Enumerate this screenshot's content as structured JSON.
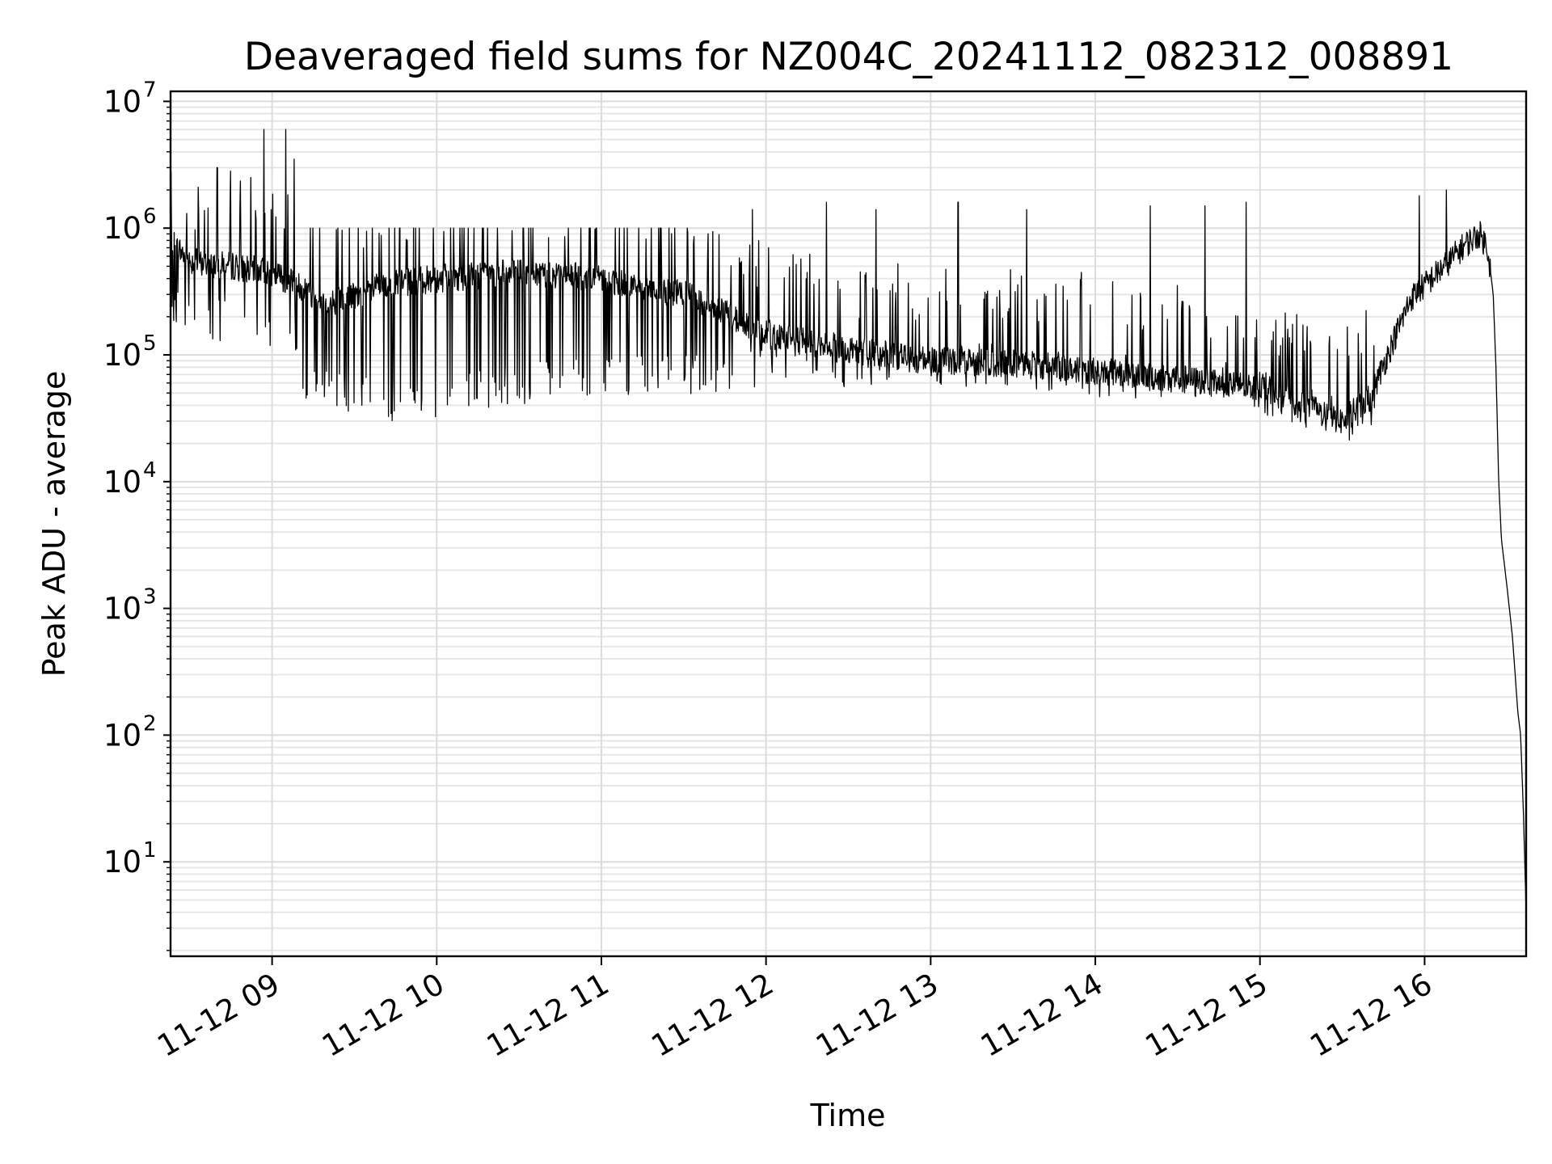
{
  "chart_data": {
    "type": "line",
    "title": "Deaveraged field sums for NZ004C_20241112_082312_008891",
    "xlabel": "Time",
    "ylabel": "Peak ADU - average",
    "yscale": "log",
    "ylim": [
      1.8,
      12000000
    ],
    "xlim": [
      "2024-11-12 08:23",
      "2024-11-12 16:37"
    ],
    "grid": "on (major and minor)",
    "legend": "none",
    "line_color": "#000000",
    "x_ticks": [
      {
        "t": "2024-11-12 09:00",
        "label": "11-12 09"
      },
      {
        "t": "2024-11-12 10:00",
        "label": "11-12 10"
      },
      {
        "t": "2024-11-12 11:00",
        "label": "11-12 11"
      },
      {
        "t": "2024-11-12 12:00",
        "label": "11-12 12"
      },
      {
        "t": "2024-11-12 13:00",
        "label": "11-12 13"
      },
      {
        "t": "2024-11-12 14:00",
        "label": "11-12 14"
      },
      {
        "t": "2024-11-12 15:00",
        "label": "11-12 15"
      },
      {
        "t": "2024-11-12 16:00",
        "label": "11-12 16"
      }
    ],
    "y_ticks": [
      {
        "v": 10,
        "base": "10",
        "exp": "1"
      },
      {
        "v": 100,
        "base": "10",
        "exp": "2"
      },
      {
        "v": 1000,
        "base": "10",
        "exp": "3"
      },
      {
        "v": 10000,
        "base": "10",
        "exp": "4"
      },
      {
        "v": 100000,
        "base": "10",
        "exp": "5"
      },
      {
        "v": 1000000,
        "base": "10",
        "exp": "6"
      },
      {
        "v": 10000000,
        "base": "10",
        "exp": "7"
      }
    ],
    "series": [
      {
        "baseline": [
          {
            "t": "2024-11-12 08:23",
            "y": 800000
          },
          {
            "t": "2024-11-12 08:30",
            "y": 550000
          },
          {
            "t": "2024-11-12 08:45",
            "y": 500000
          },
          {
            "t": "2024-11-12 09:00",
            "y": 450000
          },
          {
            "t": "2024-11-12 09:10",
            "y": 350000
          },
          {
            "t": "2024-11-12 09:20",
            "y": 250000
          },
          {
            "t": "2024-11-12 09:40",
            "y": 350000
          },
          {
            "t": "2024-11-12 10:00",
            "y": 400000
          },
          {
            "t": "2024-11-12 10:30",
            "y": 450000
          },
          {
            "t": "2024-11-12 11:00",
            "y": 400000
          },
          {
            "t": "2024-11-12 11:30",
            "y": 300000
          },
          {
            "t": "2024-11-12 12:00",
            "y": 150000
          },
          {
            "t": "2024-11-12 12:30",
            "y": 110000
          },
          {
            "t": "2024-11-12 13:00",
            "y": 90000
          },
          {
            "t": "2024-11-12 13:30",
            "y": 85000
          },
          {
            "t": "2024-11-12 14:00",
            "y": 75000
          },
          {
            "t": "2024-11-12 14:30",
            "y": 65000
          },
          {
            "t": "2024-11-12 15:00",
            "y": 55000
          },
          {
            "t": "2024-11-12 15:15",
            "y": 40000
          },
          {
            "t": "2024-11-12 15:30",
            "y": 30000
          },
          {
            "t": "2024-11-12 15:40",
            "y": 45000
          },
          {
            "t": "2024-11-12 15:48",
            "y": 120000
          },
          {
            "t": "2024-11-12 15:55",
            "y": 280000
          },
          {
            "t": "2024-11-12 16:05",
            "y": 450000
          },
          {
            "t": "2024-11-12 16:15",
            "y": 750000
          },
          {
            "t": "2024-11-12 16:20",
            "y": 900000
          },
          {
            "t": "2024-11-12 16:23",
            "y": 700000
          },
          {
            "t": "2024-11-12 16:25",
            "y": 300000
          },
          {
            "t": "2024-11-12 16:26",
            "y": 80000
          },
          {
            "t": "2024-11-12 16:27",
            "y": 10000
          },
          {
            "t": "2024-11-12 16:28",
            "y": 3500
          },
          {
            "t": "2024-11-12 16:30",
            "y": 1500
          },
          {
            "t": "2024-11-12 16:32",
            "y": 600
          },
          {
            "t": "2024-11-12 16:33",
            "y": 300
          },
          {
            "t": "2024-11-12 16:34",
            "y": 150
          },
          {
            "t": "2024-11-12 16:35",
            "y": 100
          },
          {
            "t": "2024-11-12 16:36",
            "y": 25
          },
          {
            "t": "2024-11-12 16:37",
            "y": 4
          }
        ],
        "dips_min": [
          {
            "t": "2024-11-12 09:20",
            "y": 40000
          },
          {
            "t": "2024-11-12 09:35",
            "y": 30000
          },
          {
            "t": "2024-11-12 10:00",
            "y": 30000
          },
          {
            "t": "2024-11-12 10:30",
            "y": 40000
          },
          {
            "t": "2024-11-12 11:00",
            "y": 50000
          },
          {
            "t": "2024-11-12 11:30",
            "y": 45000
          },
          {
            "t": "2024-11-12 12:00",
            "y": 55000
          },
          {
            "t": "2024-11-12 12:30",
            "y": 55000
          },
          {
            "t": "2024-11-12 13:00",
            "y": 55000
          },
          {
            "t": "2024-11-12 13:30",
            "y": 55000
          },
          {
            "t": "2024-11-12 14:00",
            "y": 45000
          },
          {
            "t": "2024-11-12 14:30",
            "y": 45000
          },
          {
            "t": "2024-11-12 15:00",
            "y": 35000
          },
          {
            "t": "2024-11-12 15:30",
            "y": 20000
          }
        ],
        "spikes": [
          {
            "t": "2024-11-12 08:40",
            "y": 3000000
          },
          {
            "t": "2024-11-12 08:57",
            "y": 6000000
          },
          {
            "t": "2024-11-12 09:05",
            "y": 6000000
          },
          {
            "t": "2024-11-12 09:08",
            "y": 3500000
          },
          {
            "t": "2024-11-12 11:55",
            "y": 1400000
          },
          {
            "t": "2024-11-12 12:22",
            "y": 1600000
          },
          {
            "t": "2024-11-12 12:40",
            "y": 1400000
          },
          {
            "t": "2024-11-12 13:10",
            "y": 1600000
          },
          {
            "t": "2024-11-12 13:35",
            "y": 1400000
          },
          {
            "t": "2024-11-12 14:20",
            "y": 1500000
          },
          {
            "t": "2024-11-12 14:40",
            "y": 1500000
          },
          {
            "t": "2024-11-12 14:55",
            "y": 1600000
          },
          {
            "t": "2024-11-12 15:58",
            "y": 1800000
          },
          {
            "t": "2024-11-12 16:08",
            "y": 2000000
          }
        ]
      }
    ]
  }
}
